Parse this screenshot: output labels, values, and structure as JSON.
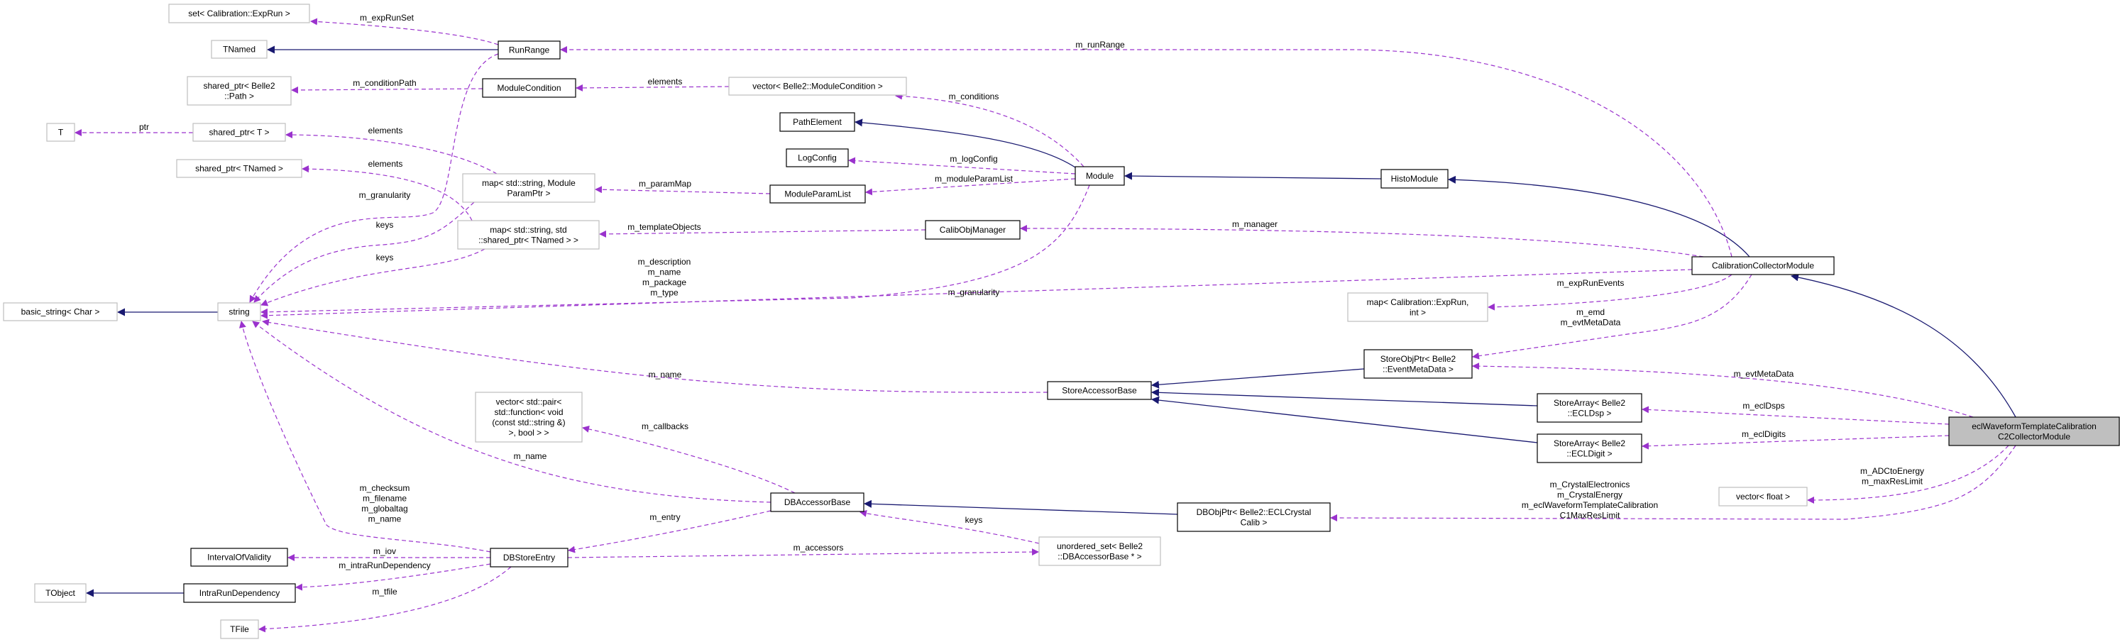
{
  "colors": {
    "inheritance": "#191970",
    "usage": "#9a32cd",
    "current_node_fill": "#bfbfbf",
    "external_border": "#bfbfbf"
  },
  "nodes": [
    {
      "id": "setExpRun",
      "lines": [
        "set< Calibration::ExpRun >"
      ],
      "documented": false
    },
    {
      "id": "TNamed",
      "lines": [
        "TNamed"
      ],
      "documented": false
    },
    {
      "id": "RunRange",
      "lines": [
        "RunRange"
      ],
      "documented": true
    },
    {
      "id": "sharedPath",
      "lines": [
        "shared_ptr< Belle2",
        "::Path >"
      ],
      "documented": false
    },
    {
      "id": "ModuleCondition",
      "lines": [
        "ModuleCondition"
      ],
      "documented": true
    },
    {
      "id": "T",
      "lines": [
        "T"
      ],
      "documented": false
    },
    {
      "id": "sharedT",
      "lines": [
        "shared_ptr< T >"
      ],
      "documented": false
    },
    {
      "id": "sharedTNamed",
      "lines": [
        "shared_ptr< TNamed >"
      ],
      "documented": false
    },
    {
      "id": "mapParam",
      "lines": [
        "map< std::string, Module",
        "ParamPtr >"
      ],
      "documented": false
    },
    {
      "id": "mapTNamed",
      "lines": [
        "map< std::string, std",
        "::shared_ptr< TNamed > >"
      ],
      "documented": false
    },
    {
      "id": "basicString",
      "lines": [
        "basic_string< Char >"
      ],
      "documented": false
    },
    {
      "id": "string",
      "lines": [
        "string"
      ],
      "documented": false
    },
    {
      "id": "vectorPair",
      "lines": [
        "vector< std::pair<",
        "std::function< void",
        "(const std::string &)",
        ">, bool > >"
      ],
      "documented": false
    },
    {
      "id": "IntervalOfValidity",
      "lines": [
        "IntervalOfValidity"
      ],
      "documented": true
    },
    {
      "id": "DBStoreEntry",
      "lines": [
        "DBStoreEntry"
      ],
      "documented": true
    },
    {
      "id": "TObject",
      "lines": [
        "TObject"
      ],
      "documented": false
    },
    {
      "id": "IntraRunDependency",
      "lines": [
        "IntraRunDependency"
      ],
      "documented": true
    },
    {
      "id": "TFile",
      "lines": [
        "TFile"
      ],
      "documented": false
    },
    {
      "id": "vectorMC",
      "lines": [
        "vector< Belle2::ModuleCondition >"
      ],
      "documented": false
    },
    {
      "id": "PathElement",
      "lines": [
        "PathElement"
      ],
      "documented": true
    },
    {
      "id": "LogConfig",
      "lines": [
        "LogConfig"
      ],
      "documented": true
    },
    {
      "id": "ModuleParamList",
      "lines": [
        "ModuleParamList"
      ],
      "documented": true
    },
    {
      "id": "Module",
      "lines": [
        "Module"
      ],
      "documented": true
    },
    {
      "id": "HistoModule",
      "lines": [
        "HistoModule"
      ],
      "documented": true
    },
    {
      "id": "CalibObjManager",
      "lines": [
        "CalibObjManager"
      ],
      "documented": true
    },
    {
      "id": "mapExpRun",
      "lines": [
        "map< Calibration::ExpRun,",
        "int >"
      ],
      "documented": false
    },
    {
      "id": "StoreAccessorBase",
      "lines": [
        "StoreAccessorBase"
      ],
      "documented": true
    },
    {
      "id": "StoreObjPtr",
      "lines": [
        "StoreObjPtr< Belle2",
        "::EventMetaData >"
      ],
      "documented": true
    },
    {
      "id": "DBAccessorBase",
      "lines": [
        "DBAccessorBase"
      ],
      "documented": true
    },
    {
      "id": "DBObjPtr",
      "lines": [
        "DBObjPtr< Belle2::ECLCrystal",
        "Calib >"
      ],
      "documented": true
    },
    {
      "id": "unorderedSet",
      "lines": [
        "unordered_set< Belle2",
        "::DBAccessorBase * >"
      ],
      "documented": false
    },
    {
      "id": "CalibrationCollectorModule",
      "lines": [
        "CalibrationCollectorModule"
      ],
      "documented": true
    },
    {
      "id": "StoreArrayDsp",
      "lines": [
        "StoreArray< Belle2",
        "::ECLDsp >"
      ],
      "documented": true
    },
    {
      "id": "StoreArrayDigit",
      "lines": [
        "StoreArray< Belle2",
        "::ECLDigit >"
      ],
      "documented": true
    },
    {
      "id": "eclModule",
      "lines": [
        "eclWaveformTemplateCalibration",
        "C2CollectorModule"
      ],
      "documented": true,
      "current": true
    },
    {
      "id": "vectorFloat",
      "lines": [
        "vector< float >"
      ],
      "documented": false
    }
  ],
  "edge_labels": [
    {
      "id": "expRunSet",
      "lines": [
        "m_expRunSet"
      ]
    },
    {
      "id": "runRange",
      "lines": [
        "m_runRange"
      ]
    },
    {
      "id": "conditionPath",
      "lines": [
        "m_conditionPath"
      ]
    },
    {
      "id": "elementsMC",
      "lines": [
        "elements"
      ]
    },
    {
      "id": "ptr",
      "lines": [
        "ptr"
      ]
    },
    {
      "id": "elementsT",
      "lines": [
        "elements"
      ]
    },
    {
      "id": "elementsTNamed",
      "lines": [
        "elements"
      ]
    },
    {
      "id": "granularityRR",
      "lines": [
        "m_granularity"
      ]
    },
    {
      "id": "keys1",
      "lines": [
        "keys"
      ]
    },
    {
      "id": "keys2",
      "lines": [
        "keys"
      ]
    },
    {
      "id": "paramMap",
      "lines": [
        "m_paramMap"
      ]
    },
    {
      "id": "templateObjects",
      "lines": [
        "m_templateObjects"
      ]
    },
    {
      "id": "moduleStrings",
      "lines": [
        "m_description",
        "m_name",
        "m_package",
        "m_type"
      ]
    },
    {
      "id": "conditions",
      "lines": [
        "m_conditions"
      ]
    },
    {
      "id": "logConfig",
      "lines": [
        "m_logConfig"
      ]
    },
    {
      "id": "moduleParamList",
      "lines": [
        "m_moduleParamList"
      ]
    },
    {
      "id": "manager",
      "lines": [
        "m_manager"
      ]
    },
    {
      "id": "granularityCCM",
      "lines": [
        "m_granularity"
      ]
    },
    {
      "id": "nameSAB",
      "lines": [
        "m_name"
      ]
    },
    {
      "id": "callbacks",
      "lines": [
        "m_callbacks"
      ]
    },
    {
      "id": "nameDBA",
      "lines": [
        "m_name"
      ]
    },
    {
      "id": "dbStrings",
      "lines": [
        "m_checksum",
        "m_filename",
        "m_globaltag",
        "m_name"
      ]
    },
    {
      "id": "entry",
      "lines": [
        "m_entry"
      ]
    },
    {
      "id": "iov",
      "lines": [
        "m_iov"
      ]
    },
    {
      "id": "intraRun",
      "lines": [
        "m_intraRunDependency"
      ]
    },
    {
      "id": "tfile",
      "lines": [
        "m_tfile"
      ]
    },
    {
      "id": "keysDB",
      "lines": [
        "keys"
      ]
    },
    {
      "id": "accessors",
      "lines": [
        "m_accessors"
      ]
    },
    {
      "id": "expRunEvents",
      "lines": [
        "m_expRunEvents"
      ]
    },
    {
      "id": "emd",
      "lines": [
        "m_emd",
        "m_evtMetaData"
      ]
    },
    {
      "id": "evtMetaData",
      "lines": [
        "m_evtMetaData"
      ]
    },
    {
      "id": "eclDsps",
      "lines": [
        "m_eclDsps"
      ]
    },
    {
      "id": "eclDigits",
      "lines": [
        "m_eclDigits"
      ]
    },
    {
      "id": "adc",
      "lines": [
        "m_ADCtoEnergy",
        "m_maxResLimit"
      ]
    },
    {
      "id": "crystal",
      "lines": [
        "m_CrystalElectronics",
        "m_CrystalEnergy",
        "m_eclWaveformTemplateCalibration",
        "C1MaxResLimit"
      ]
    }
  ]
}
